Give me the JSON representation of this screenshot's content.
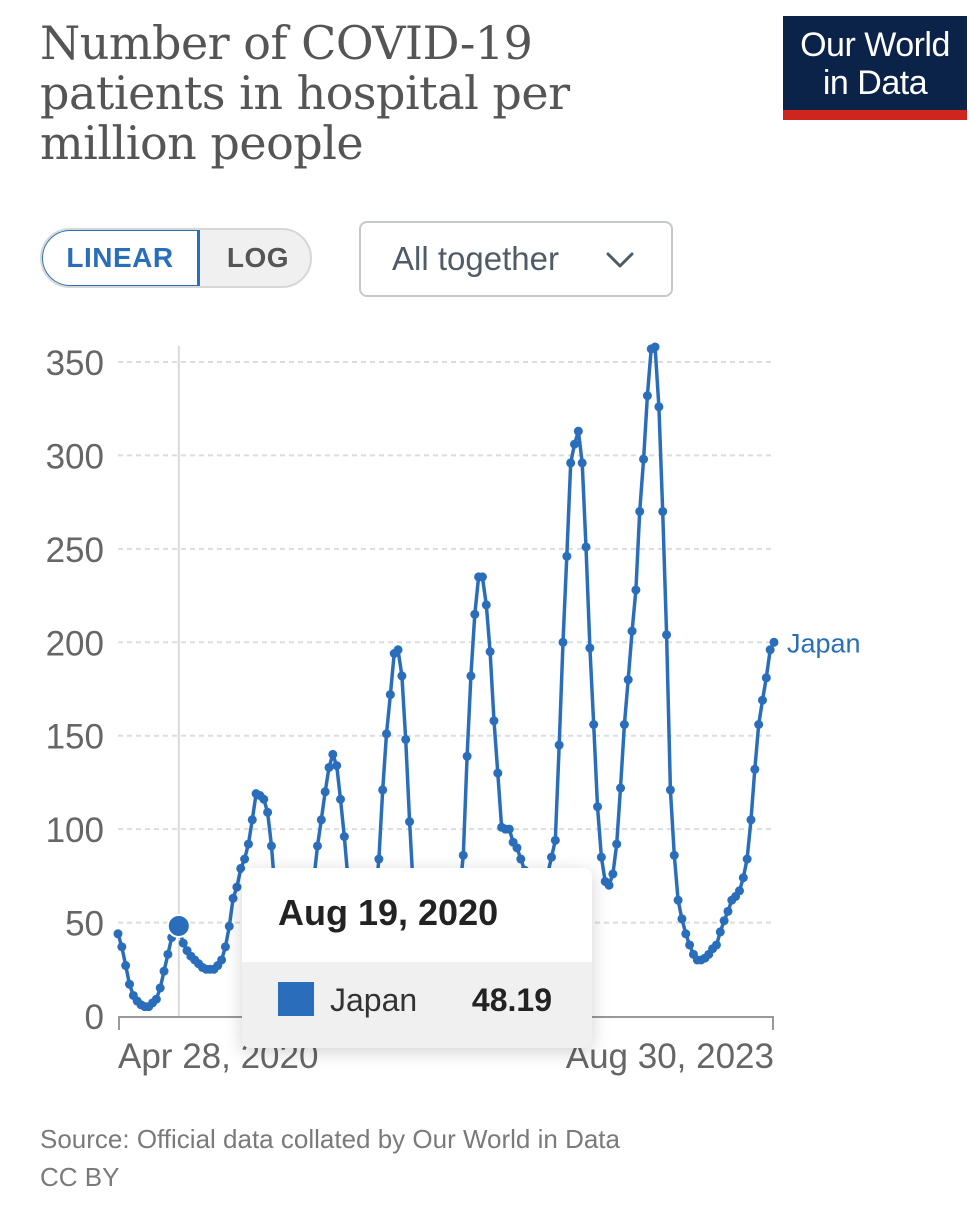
{
  "header": {
    "title": "Number of COVID-19 patients in hospital per million people",
    "logo_line1": "Our World",
    "logo_line2": "in Data"
  },
  "controls": {
    "linear_label": "LINEAR",
    "log_label": "LOG",
    "selected_scale": "LINEAR",
    "facet_select": "All together"
  },
  "tooltip": {
    "date": "Aug 19, 2020",
    "entity": "Japan",
    "value": "48.19"
  },
  "footer": {
    "source": "Source: Official data collated by Our World in Data",
    "license": "CC BY"
  },
  "colors": {
    "series": "#2a6ebb",
    "logo_bg": "#0b2249",
    "logo_bar": "#ce261e"
  },
  "chart_data": {
    "type": "line",
    "title": "Number of COVID-19 patients in hospital per million people",
    "xlabel": "",
    "ylabel": "",
    "ylim": [
      0,
      350
    ],
    "yticks": [
      0,
      50,
      100,
      150,
      200,
      250,
      300,
      350
    ],
    "y_tick_labels": [
      "0",
      "50",
      "100",
      "150",
      "200",
      "250",
      "300",
      "350"
    ],
    "x_tick_labels": [
      "Apr 28, 2020",
      "Aug 30, 2023"
    ],
    "x_start": "2020-04-28",
    "x_end": "2023-08-30",
    "grid": "horizontal dashed",
    "legend": "inline label at line end",
    "highlight": {
      "x": "2020-08-19",
      "y": 48.19
    },
    "series": [
      {
        "name": "Japan",
        "values": [
          44,
          37,
          27,
          17,
          11,
          8,
          6,
          5,
          5,
          7,
          9,
          15,
          24,
          33,
          42,
          48.19,
          46,
          39,
          35,
          32,
          30,
          28,
          26,
          25,
          25,
          25,
          27,
          30,
          37,
          48,
          63,
          69,
          79,
          84,
          92,
          105,
          119,
          118,
          116,
          109,
          91,
          65,
          45,
          27,
          17,
          9,
          8,
          12,
          18,
          30,
          55,
          72,
          91,
          105,
          120,
          133,
          140,
          134,
          116,
          96,
          72,
          50,
          34,
          25,
          22,
          30,
          45,
          62,
          84,
          121,
          151,
          172,
          194,
          196,
          182,
          148,
          104,
          67,
          45,
          35,
          28,
          24,
          22,
          22,
          25,
          28,
          31,
          36,
          48,
          66,
          86,
          139,
          182,
          215,
          235,
          235,
          220,
          195,
          158,
          130,
          101,
          100,
          100,
          93,
          90,
          84,
          78,
          73,
          70,
          70,
          70,
          72,
          76,
          85,
          94,
          145,
          200,
          246,
          296,
          306,
          313,
          296,
          251,
          197,
          156,
          112,
          85,
          72,
          70,
          76,
          92,
          122,
          156,
          180,
          206,
          228,
          270,
          298,
          332,
          357,
          358,
          326,
          270,
          204,
          121,
          86,
          62,
          52,
          44,
          38,
          33,
          30,
          30,
          31,
          33,
          36,
          38,
          45,
          51,
          56,
          62,
          64,
          67,
          74,
          84,
          105,
          132,
          156,
          169,
          181,
          196,
          200
        ]
      }
    ]
  }
}
